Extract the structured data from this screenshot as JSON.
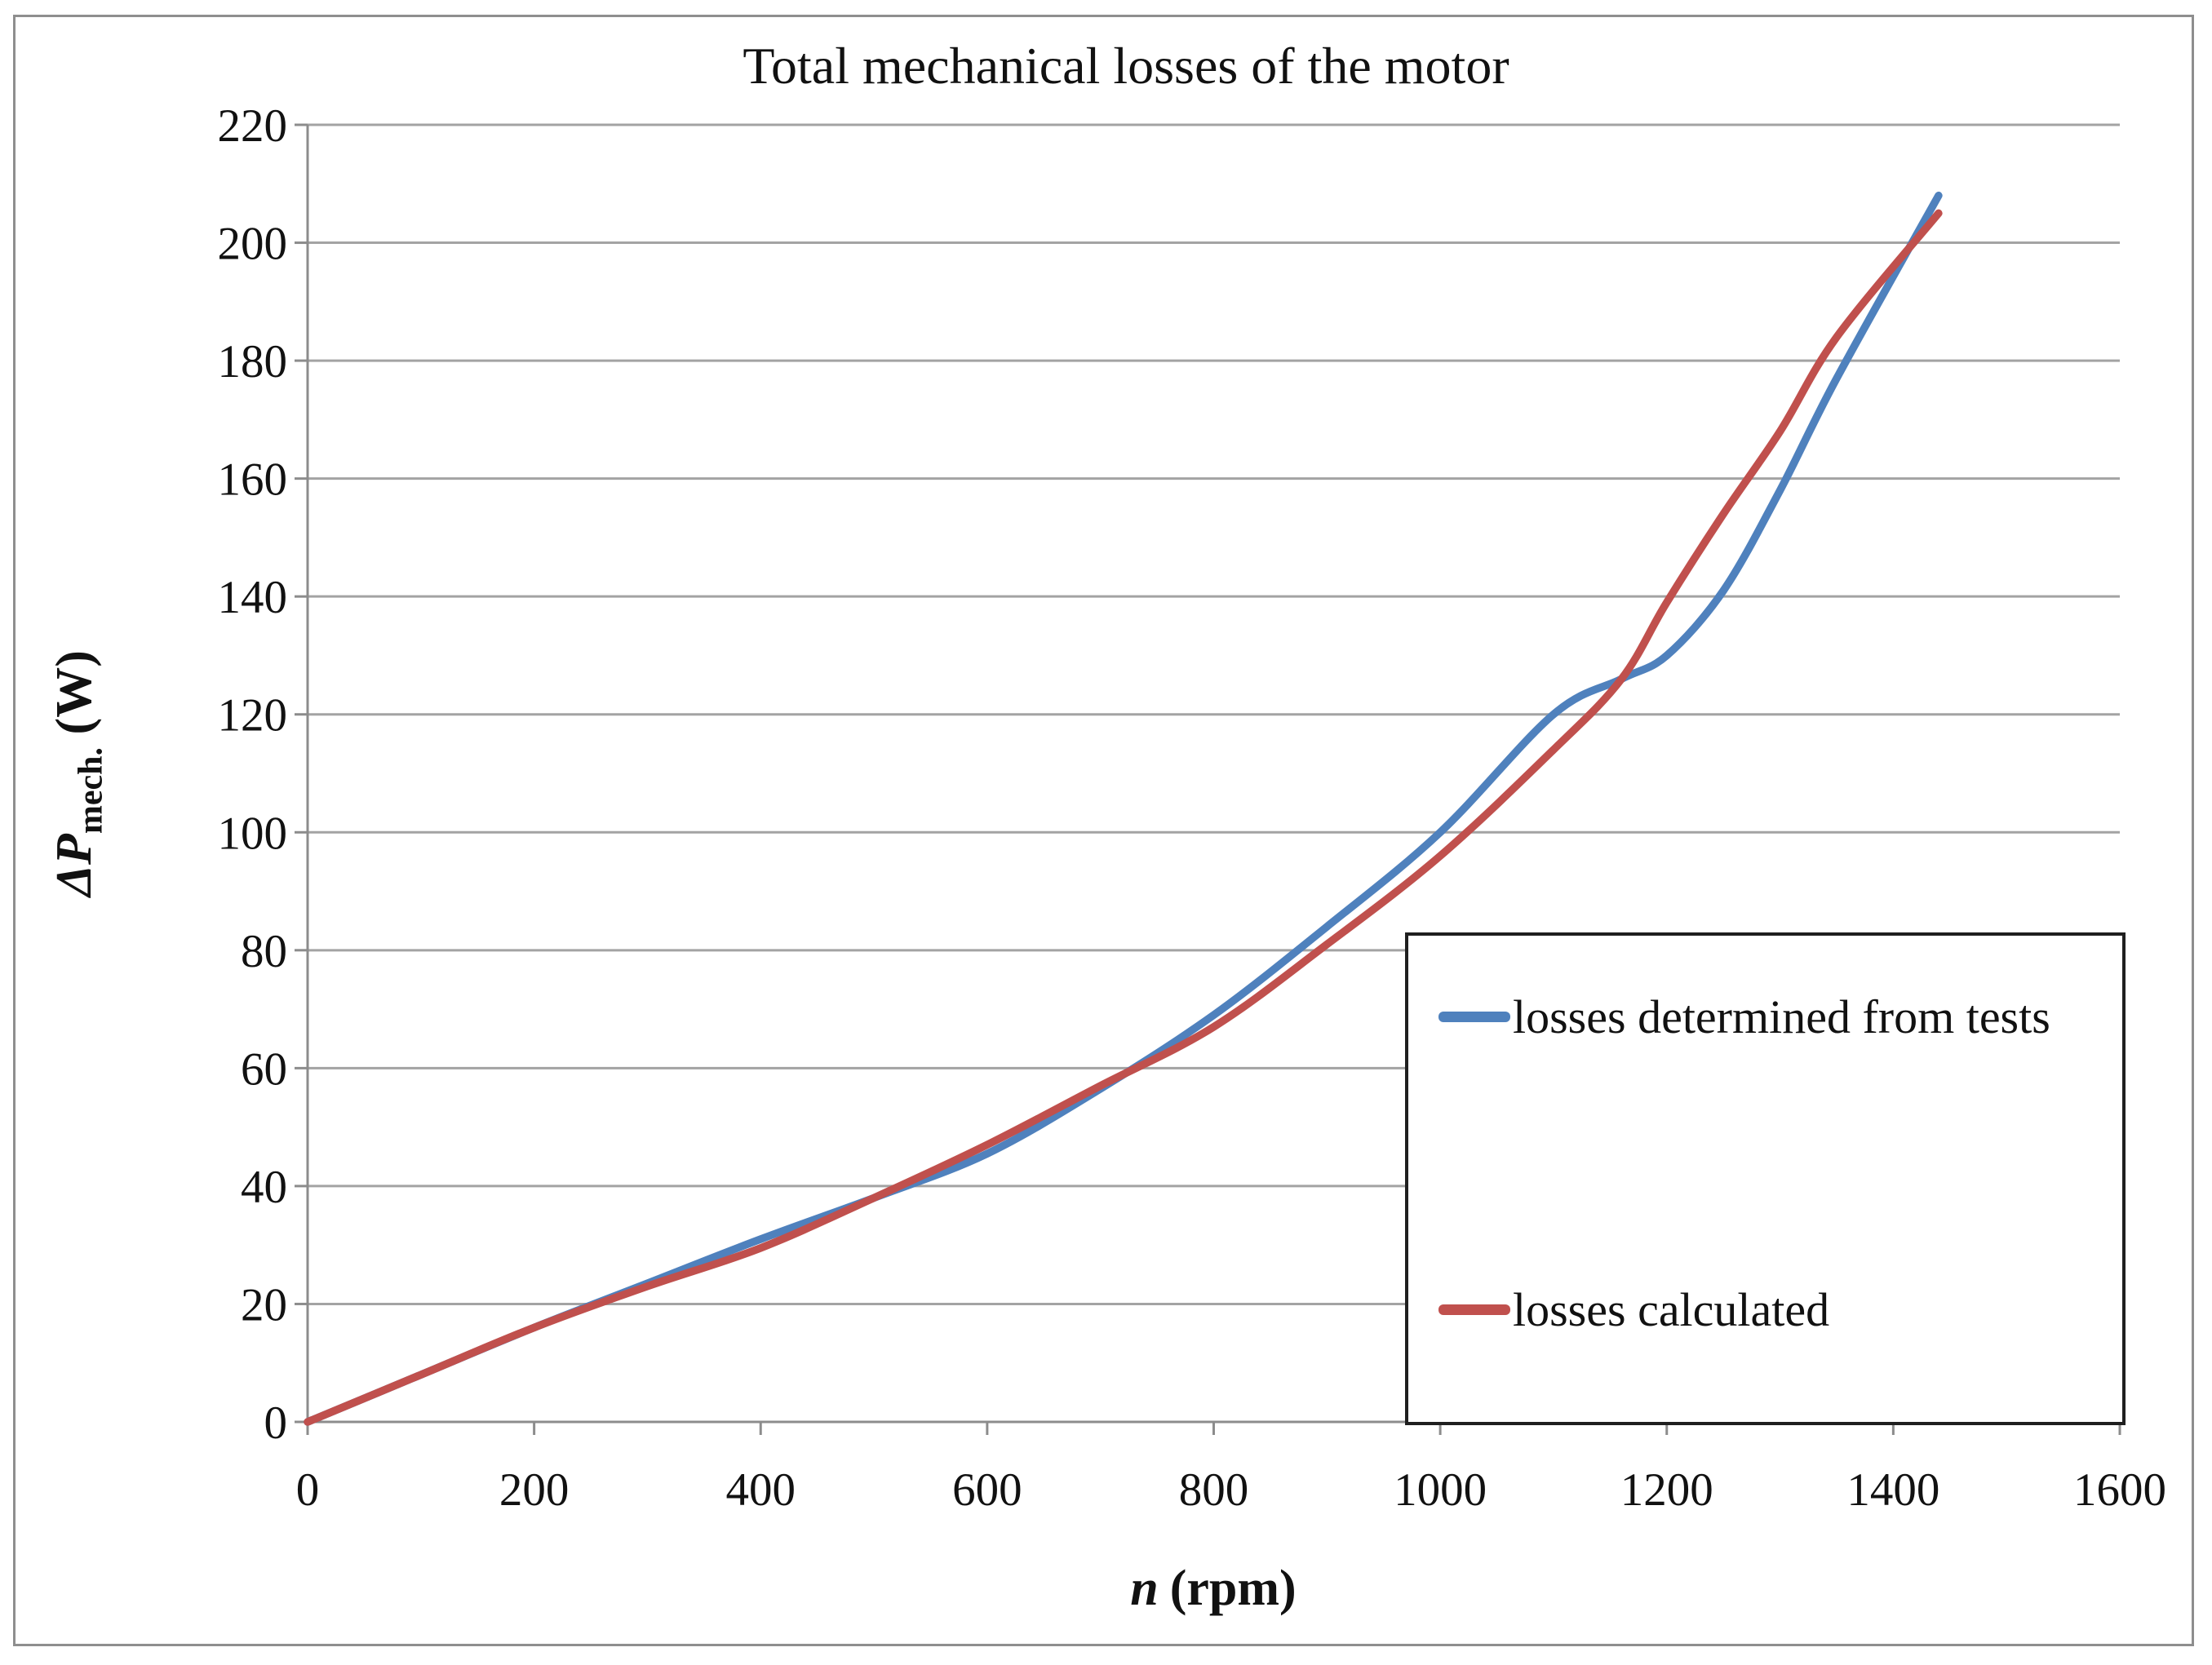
{
  "figure": {
    "title": "Total mechanical losses of the motor"
  },
  "axes": {
    "y_title": {
      "symbol": "ΔP",
      "subscript": "mech.",
      "unit": "(W)"
    },
    "x_title": {
      "symbol": "n",
      "unit": "(rpm)"
    }
  },
  "legend": {
    "entries": [
      {
        "label": "losses determined from tests",
        "color": "#4F81BD"
      },
      {
        "label": "losses calculated",
        "color": "#C0504D"
      }
    ]
  },
  "colors": {
    "series_tests": "#4F81BD",
    "series_calculated": "#C0504D",
    "gridline": "#A3A3A3",
    "axis": "#8C8C8C",
    "text": "#111111",
    "legend_border": "#1f1f1f",
    "figure_border": "#8e8e8e"
  },
  "chart_data": {
    "type": "line",
    "title": "Total mechanical losses of the motor",
    "xlabel": "n (rpm)",
    "ylabel": "ΔP mech. (W)",
    "xlim": [
      0,
      1600
    ],
    "ylim": [
      0,
      220
    ],
    "x_ticks": [
      0,
      200,
      400,
      600,
      800,
      1000,
      1200,
      1400,
      1600
    ],
    "y_ticks": [
      0,
      20,
      40,
      60,
      80,
      100,
      120,
      140,
      160,
      180,
      200,
      220
    ],
    "grid": "horizontal",
    "legend_position": "inside lower right",
    "series": [
      {
        "name": "losses determined from tests",
        "color": "#4F81BD",
        "points": [
          [
            0,
            0
          ],
          [
            100,
            8
          ],
          [
            200,
            16
          ],
          [
            300,
            23.5
          ],
          [
            400,
            31
          ],
          [
            500,
            38
          ],
          [
            600,
            45.5
          ],
          [
            700,
            56.5
          ],
          [
            800,
            69
          ],
          [
            900,
            84
          ],
          [
            1000,
            100
          ],
          [
            1100,
            120
          ],
          [
            1160,
            126
          ],
          [
            1200,
            130
          ],
          [
            1250,
            141
          ],
          [
            1300,
            158
          ],
          [
            1350,
            177
          ],
          [
            1440,
            208
          ]
        ]
      },
      {
        "name": "losses calculated",
        "color": "#C0504D",
        "points": [
          [
            0,
            0
          ],
          [
            100,
            8
          ],
          [
            200,
            16
          ],
          [
            300,
            23
          ],
          [
            400,
            29.5
          ],
          [
            500,
            38
          ],
          [
            600,
            47
          ],
          [
            700,
            57
          ],
          [
            800,
            67
          ],
          [
            900,
            81
          ],
          [
            1000,
            96
          ],
          [
            1100,
            114
          ],
          [
            1160,
            126
          ],
          [
            1200,
            139
          ],
          [
            1250,
            154
          ],
          [
            1300,
            168
          ],
          [
            1350,
            184
          ],
          [
            1440,
            205
          ]
        ]
      }
    ]
  }
}
